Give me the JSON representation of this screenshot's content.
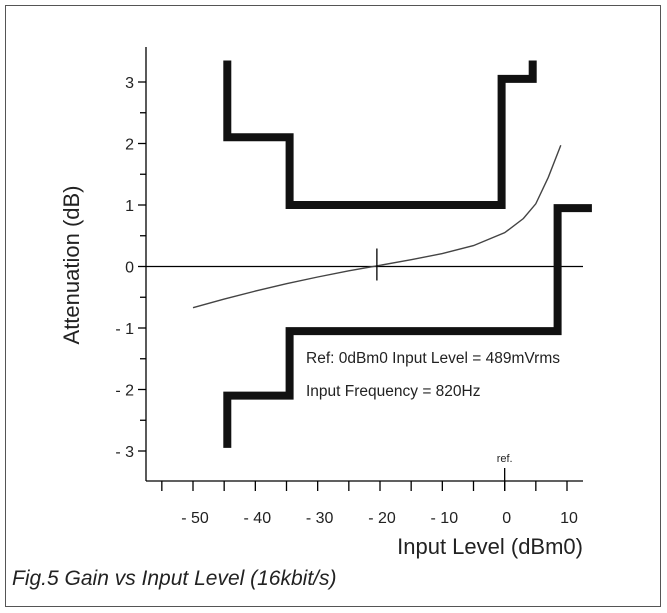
{
  "chart_data": {
    "type": "line",
    "xlabel": "Input Level (dBm0)",
    "ylabel": "Attenuation (dB)",
    "xlim": [
      -58,
      15
    ],
    "ylim": [
      -3.45,
      3.65
    ],
    "x_ticks": [
      {
        "v": -50,
        "label": "- 50"
      },
      {
        "v": -40,
        "label": "- 40"
      },
      {
        "v": -30,
        "label": "- 30"
      },
      {
        "v": -20,
        "label": "- 20"
      },
      {
        "v": -10,
        "label": "- 10"
      },
      {
        "v": 0,
        "label": "0"
      },
      {
        "v": 10,
        "label": "10"
      }
    ],
    "x_minor_ticks": [
      -55,
      -45,
      -35,
      -25,
      -15,
      -5,
      5
    ],
    "y_ticks": [
      {
        "v": 3,
        "label": "3"
      },
      {
        "v": 2,
        "label": "2"
      },
      {
        "v": 1,
        "label": "1"
      },
      {
        "v": 0,
        "label": "0"
      },
      {
        "v": -1,
        "label": "- 1"
      },
      {
        "v": -2,
        "label": "- 2"
      },
      {
        "v": -3,
        "label": "- 3"
      }
    ],
    "y_minor_ticks": [
      2.5,
      1.5,
      0.5,
      -0.5,
      -1.5,
      -2.5
    ],
    "upper_limit": {
      "x": [
        -44.5,
        -44.5,
        -34.5,
        -34.5,
        -0.5,
        -0.5,
        4.5,
        4.5
      ],
      "y": [
        3.35,
        2.1,
        2.1,
        1.0,
        1.0,
        3.05,
        3.05,
        3.35
      ]
    },
    "lower_limit": {
      "x": [
        -44.5,
        -44.5,
        -34.5,
        -34.5,
        8.5,
        8.5,
        14
      ],
      "y": [
        -2.95,
        -2.1,
        -2.1,
        -1.05,
        -1.05,
        0.95,
        0.95
      ]
    },
    "measured": {
      "x": [
        -50,
        -45,
        -40,
        -35,
        -30,
        -25,
        -20,
        -15,
        -10,
        -5,
        0,
        3,
        5,
        7,
        9
      ],
      "y": [
        -0.67,
        -0.53,
        -0.4,
        -0.28,
        -0.17,
        -0.07,
        0.02,
        0.11,
        0.21,
        0.34,
        0.55,
        0.78,
        1.02,
        1.45,
        1.97
      ]
    },
    "ref_marker": {
      "x": -20.5,
      "y": 0
    },
    "ref_tick": {
      "x": 0,
      "label": "ref."
    },
    "annotations": [
      "Ref: 0dBm0 Input Level = 489mVrms",
      "Input Frequency = 820Hz"
    ]
  },
  "caption": "Fig.5 Gain vs Input Level (16kbit/s)"
}
